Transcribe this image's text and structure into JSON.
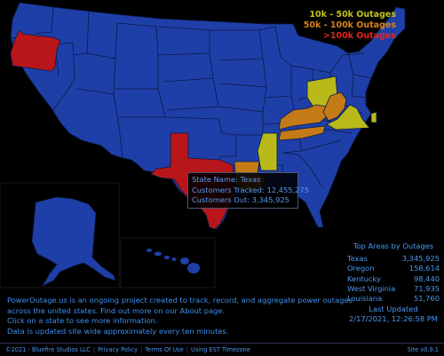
{
  "colors": {
    "background": "#000000",
    "base_state": "#1f3fa8",
    "tier_10k_50k": "#b9ba1a",
    "tier_50k_100k": "#c47a17",
    "tier_100k_plus": "#b8161a",
    "text_blue": "#3b8fe6"
  },
  "legend": {
    "entries": [
      {
        "label": "10k - 50k Outages",
        "color": "#c4c11f"
      },
      {
        "label": "50k - 100k Outages",
        "color": "#d7821b"
      },
      {
        "label": ">100k Outages",
        "color": "#e0251e"
      }
    ]
  },
  "tooltip": {
    "state_name": "State Name: Texas",
    "customers_tracked": "Customers Tracked: 12,455,275",
    "customers_out": "Customers Out: 3,345,925"
  },
  "top_areas": {
    "title": "Top Areas by Outages",
    "rows": [
      {
        "name": "Texas",
        "value": "3,345,925"
      },
      {
        "name": "Oregon",
        "value": "158,614"
      },
      {
        "name": "Kentucky",
        "value": "98,440"
      },
      {
        "name": "West Virginia",
        "value": "71,935"
      },
      {
        "name": "Louisiana",
        "value": "51,760"
      }
    ],
    "last_updated_label": "Last Updated",
    "last_updated_value": "2/17/2021, 12:26:58 PM"
  },
  "info": {
    "line1": "PowerOutage.us is an ongoing project created to track, record, and aggregate power outages",
    "line2": "across the united states. Find out more on our About page.",
    "line3": "Click on a state to see more information.",
    "line4": "Data is updated site wide approximately every ten minutes."
  },
  "footer": {
    "copyright": "©2021 - Bluefire Studios LLC",
    "privacy": "Privacy Policy",
    "terms": "Terms Of Use",
    "timezone": "Using EST Timezone",
    "version": "Site v0.9.1"
  }
}
